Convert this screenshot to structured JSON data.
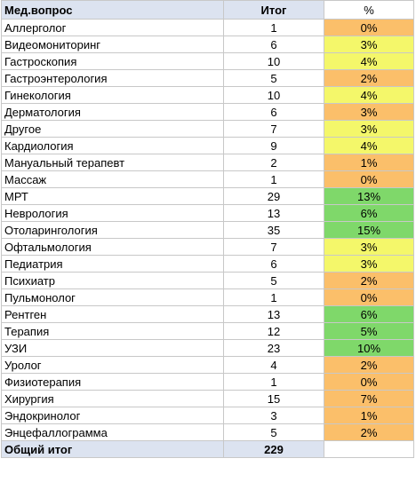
{
  "header": {
    "col_question": "Мед.вопрос",
    "col_total": "Итог",
    "col_pct": "%"
  },
  "rows": [
    {
      "name": "Аллерголог",
      "total": "1",
      "pct": "0%",
      "color": "#fbbf6a"
    },
    {
      "name": "Видеомониторинг",
      "total": "6",
      "pct": "3%",
      "color": "#f4f76a"
    },
    {
      "name": "Гастроскопия",
      "total": "10",
      "pct": "4%",
      "color": "#f4f76a"
    },
    {
      "name": "Гастроэнтерология",
      "total": "5",
      "pct": "2%",
      "color": "#fbbf6a"
    },
    {
      "name": "Гинекология",
      "total": "10",
      "pct": "4%",
      "color": "#f4f76a"
    },
    {
      "name": "Дерматология",
      "total": "6",
      "pct": "3%",
      "color": "#fbbf6a"
    },
    {
      "name": "Другое",
      "total": "7",
      "pct": "3%",
      "color": "#f4f76a"
    },
    {
      "name": "Кардиология",
      "total": "9",
      "pct": "4%",
      "color": "#f4f76a"
    },
    {
      "name": "Мануальный терапевт",
      "total": "2",
      "pct": "1%",
      "color": "#fbbf6a"
    },
    {
      "name": "Массаж",
      "total": "1",
      "pct": "0%",
      "color": "#fbbf6a"
    },
    {
      "name": "МРТ",
      "total": "29",
      "pct": "13%",
      "color": "#7fd86a"
    },
    {
      "name": "Неврология",
      "total": "13",
      "pct": "6%",
      "color": "#7fd86a"
    },
    {
      "name": "Отоларингология",
      "total": "35",
      "pct": "15%",
      "color": "#7fd86a"
    },
    {
      "name": "Офтальмология",
      "total": "7",
      "pct": "3%",
      "color": "#f4f76a"
    },
    {
      "name": "Педиатрия",
      "total": "6",
      "pct": "3%",
      "color": "#f4f76a"
    },
    {
      "name": "Психиатр",
      "total": "5",
      "pct": "2%",
      "color": "#fbbf6a"
    },
    {
      "name": "Пульмонолог",
      "total": "1",
      "pct": "0%",
      "color": "#fbbf6a"
    },
    {
      "name": "Рентген",
      "total": "13",
      "pct": "6%",
      "color": "#7fd86a"
    },
    {
      "name": "Терапия",
      "total": "12",
      "pct": "5%",
      "color": "#7fd86a"
    },
    {
      "name": "УЗИ",
      "total": "23",
      "pct": "10%",
      "color": "#7fd86a"
    },
    {
      "name": "Уролог",
      "total": "4",
      "pct": "2%",
      "color": "#fbbf6a"
    },
    {
      "name": "Физиотерапия",
      "total": "1",
      "pct": "0%",
      "color": "#fbbf6a"
    },
    {
      "name": "Хирургия",
      "total": "15",
      "pct": "7%",
      "color": "#fbbf6a"
    },
    {
      "name": "Эндокринолог",
      "total": "3",
      "pct": "1%",
      "color": "#fbbf6a"
    },
    {
      "name": "Энцефаллограмма",
      "total": "5",
      "pct": "2%",
      "color": "#fbbf6a"
    }
  ],
  "footer": {
    "label": "Общий итог",
    "total": "229"
  }
}
